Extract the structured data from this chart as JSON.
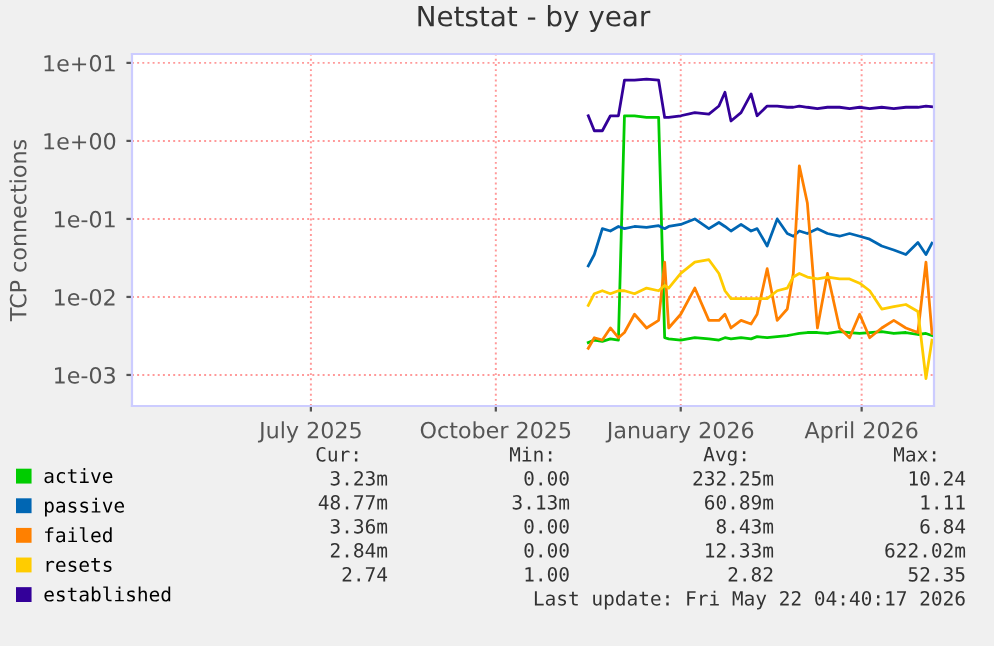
{
  "chart_data": {
    "type": "line",
    "title": "Netstat - by year",
    "ylabel": "TCP connections",
    "x": [
      "2025-12-01",
      "2025-12-04",
      "2025-12-08",
      "2025-12-12",
      "2025-12-16",
      "2025-12-19",
      "2025-12-24",
      "2025-12-30",
      "2026-01-05",
      "2026-01-08",
      "2026-01-10",
      "2026-01-16",
      "2026-01-23",
      "2026-01-30",
      "2026-02-04",
      "2026-02-07",
      "2026-02-10",
      "2026-02-15",
      "2026-02-20",
      "2026-02-23",
      "2026-02-28",
      "2026-03-05",
      "2026-03-10",
      "2026-03-13",
      "2026-03-16",
      "2026-03-20",
      "2026-03-25",
      "2026-03-30",
      "2026-04-05",
      "2026-04-10",
      "2026-04-15",
      "2026-04-20",
      "2026-04-26",
      "2026-05-02",
      "2026-05-08",
      "2026-05-14",
      "2026-05-18",
      "2026-05-21"
    ],
    "series": [
      {
        "name": "active",
        "color": "#00cc00",
        "values": [
          0.0026,
          0.0028,
          0.0027,
          0.0029,
          0.0028,
          2.1,
          2.1,
          2.0,
          2.0,
          0.003,
          0.0029,
          0.0028,
          0.003,
          0.0029,
          0.0028,
          0.003,
          0.0029,
          0.003,
          0.0029,
          0.0031,
          0.003,
          0.0031,
          0.0032,
          0.0033,
          0.0034,
          0.0035,
          0.0035,
          0.0034,
          0.0036,
          0.0035,
          0.0034,
          0.0035,
          0.0036,
          0.0034,
          0.0035,
          0.0033,
          0.0034,
          0.0032
        ]
      },
      {
        "name": "passive",
        "color": "#0066b3",
        "values": [
          0.025,
          0.035,
          0.075,
          0.07,
          0.08,
          0.075,
          0.08,
          0.078,
          0.082,
          0.075,
          0.08,
          0.085,
          0.1,
          0.075,
          0.09,
          0.08,
          0.07,
          0.085,
          0.07,
          0.075,
          0.045,
          0.1,
          0.065,
          0.06,
          0.07,
          0.065,
          0.075,
          0.065,
          0.06,
          0.065,
          0.06,
          0.055,
          0.045,
          0.04,
          0.035,
          0.05,
          0.035,
          0.049
        ]
      },
      {
        "name": "failed",
        "color": "#ff8000",
        "values": [
          0.0022,
          0.003,
          0.0028,
          0.004,
          0.003,
          0.0035,
          0.006,
          0.004,
          0.005,
          0.028,
          0.004,
          0.006,
          0.013,
          0.005,
          0.005,
          0.006,
          0.004,
          0.005,
          0.0045,
          0.006,
          0.023,
          0.005,
          0.007,
          0.02,
          0.48,
          0.16,
          0.004,
          0.02,
          0.004,
          0.003,
          0.006,
          0.003,
          0.004,
          0.005,
          0.004,
          0.0035,
          0.028,
          0.0034
        ]
      },
      {
        "name": "resets",
        "color": "#ffcc00",
        "values": [
          0.0078,
          0.011,
          0.012,
          0.011,
          0.012,
          0.012,
          0.011,
          0.013,
          0.012,
          0.014,
          0.013,
          0.02,
          0.028,
          0.03,
          0.02,
          0.012,
          0.0095,
          0.0095,
          0.0095,
          0.0095,
          0.0095,
          0.012,
          0.013,
          0.018,
          0.02,
          0.018,
          0.017,
          0.018,
          0.017,
          0.017,
          0.015,
          0.012,
          0.007,
          0.0075,
          0.008,
          0.0065,
          0.0009,
          0.0028
        ]
      },
      {
        "name": "established",
        "color": "#330099",
        "values": [
          2.1,
          1.35,
          1.35,
          2.1,
          2.1,
          6.0,
          6.0,
          6.2,
          6.0,
          2.0,
          2.0,
          2.1,
          2.3,
          2.2,
          2.8,
          4.2,
          1.8,
          2.3,
          4.0,
          2.1,
          2.8,
          2.8,
          2.7,
          2.7,
          2.8,
          2.7,
          2.6,
          2.7,
          2.7,
          2.6,
          2.7,
          2.6,
          2.7,
          2.6,
          2.7,
          2.7,
          2.8,
          2.74
        ]
      }
    ],
    "log": "y",
    "xlim": [
      "2025-04-18",
      "2026-05-22"
    ],
    "ylim": [
      0.0004,
      13
    ],
    "xticks": [
      {
        "value": "2025-07-16",
        "label": "July 2025"
      },
      {
        "value": "2025-10-16",
        "label": "October 2025"
      },
      {
        "value": "2026-01-16",
        "label": "January 2026"
      },
      {
        "value": "2026-04-16",
        "label": "April 2026"
      }
    ],
    "yticks": [
      {
        "value": 0.001,
        "label": "1e-03"
      },
      {
        "value": 0.01,
        "label": "1e-02"
      },
      {
        "value": 0.1,
        "label": "1e-01"
      },
      {
        "value": 1,
        "label": "1e+00"
      },
      {
        "value": 10,
        "label": "1e+01"
      }
    ],
    "grid": true,
    "legend": "bottom",
    "marker": "none",
    "line_style": "solid",
    "annotations": [
      "Cur:",
      "Min:",
      "Avg:",
      "Max:",
      "3.23m",
      "0.00",
      "232.25m",
      "10.24",
      "48.77m",
      "3.13m",
      "60.89m",
      "1.11",
      "3.36m",
      "0.00",
      "8.43m",
      "6.84",
      "2.84m",
      "0.00",
      "12.33m",
      "622.02m",
      "2.74",
      "1.00",
      "2.82",
      "52.35",
      "Last update: Fri May 22 04:40:17 2026"
    ]
  }
}
